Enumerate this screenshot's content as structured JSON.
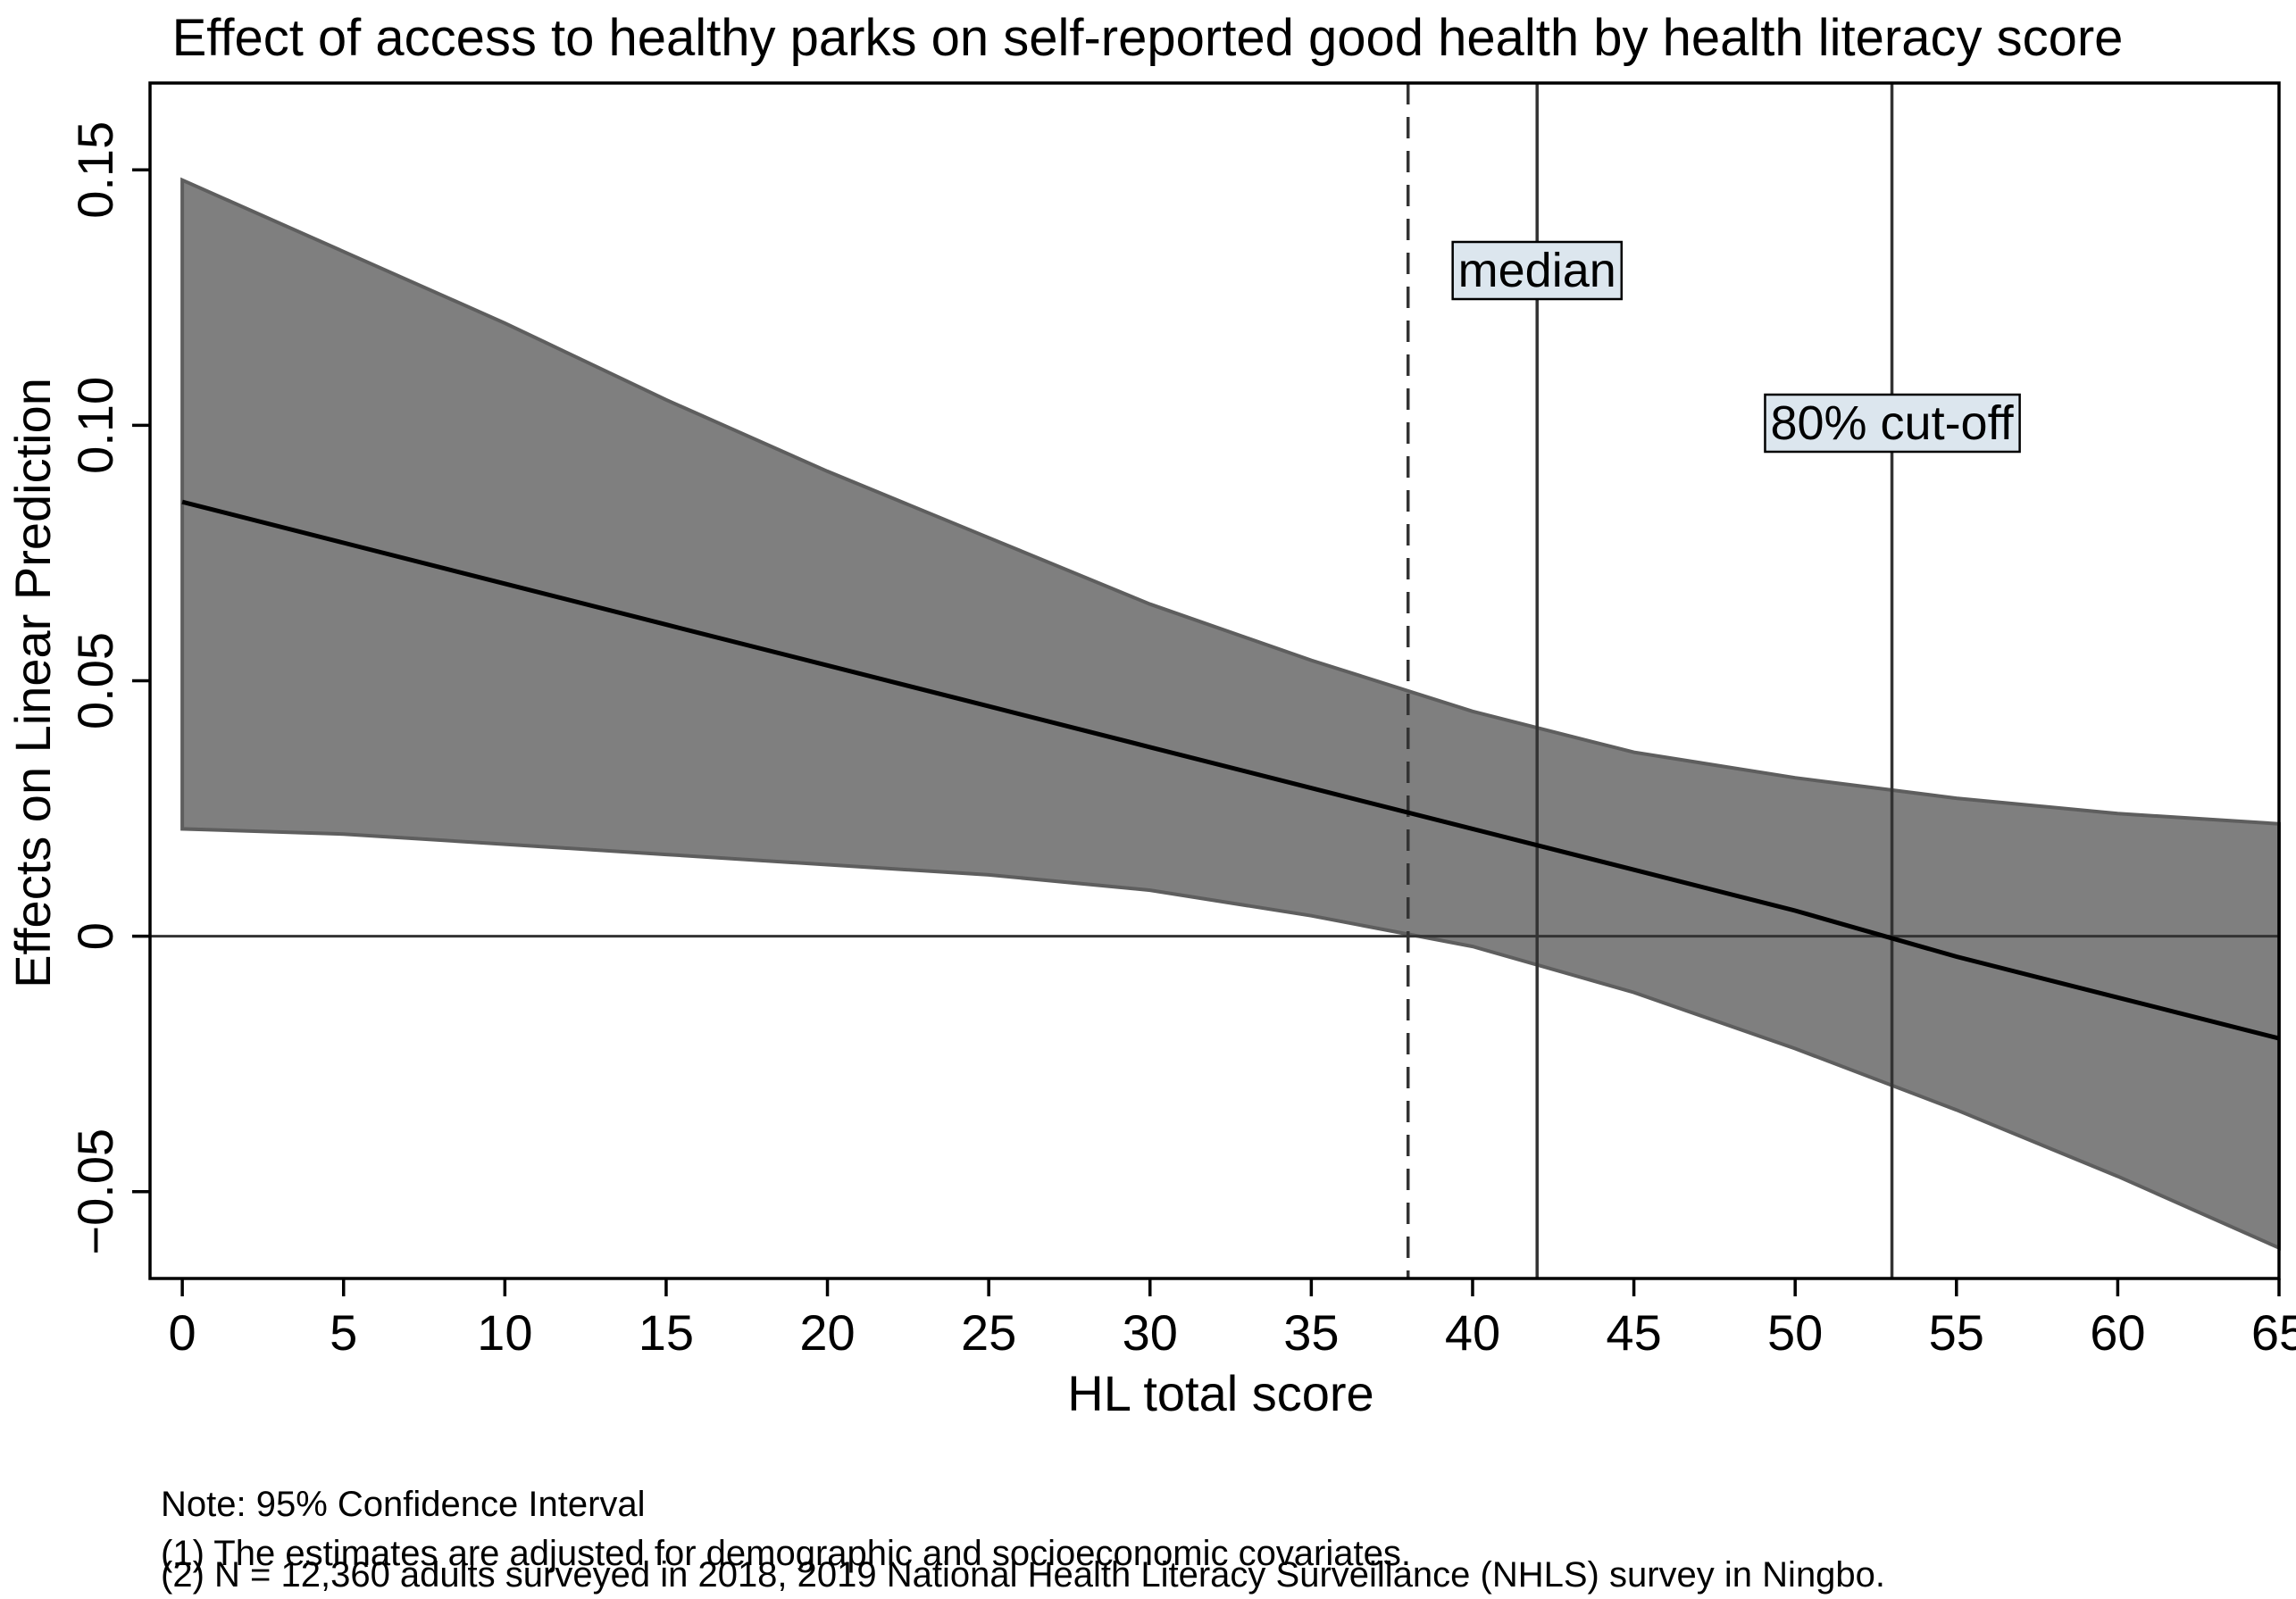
{
  "chart_data": {
    "type": "area",
    "title": "Effect of access to healthy parks on self-reported good health by health literacy score",
    "xlabel": "HL total score",
    "ylabel": "Effects on Linear Prediction",
    "xlim": [
      -1,
      65
    ],
    "ylim": [
      -0.067,
      0.167
    ],
    "xticks": [
      0,
      5,
      10,
      15,
      20,
      25,
      30,
      35,
      40,
      45,
      50,
      55,
      60,
      65
    ],
    "xtick_labels": [
      "0",
      "5",
      "10",
      "15",
      "20",
      "25",
      "30",
      "35",
      "40",
      "45",
      "50",
      "55",
      "60",
      "65"
    ],
    "yticks": [
      -0.05,
      0,
      0.05,
      0.1,
      0.15
    ],
    "ytick_labels": [
      "−0.05",
      "0",
      "0.05",
      "0.10",
      "0.15"
    ],
    "x": [
      0,
      5,
      10,
      15,
      20,
      25,
      30,
      35,
      40,
      45,
      50,
      55,
      60,
      65
    ],
    "series": [
      {
        "name": "Effect estimate",
        "values": [
          0.085,
          0.077,
          0.069,
          0.061,
          0.053,
          0.045,
          0.037,
          0.029,
          0.021,
          0.013,
          0.005,
          -0.004,
          -0.012,
          -0.02
        ],
        "color": "#000000"
      },
      {
        "name": "95% CI upper",
        "values": [
          0.148,
          0.134,
          0.12,
          0.105,
          0.091,
          0.078,
          0.065,
          0.054,
          0.044,
          0.036,
          0.031,
          0.027,
          0.024,
          0.022
        ]
      },
      {
        "name": "95% CI lower",
        "values": [
          0.021,
          0.02,
          0.018,
          0.016,
          0.014,
          0.012,
          0.009,
          0.004,
          -0.002,
          -0.011,
          -0.022,
          -0.034,
          -0.047,
          -0.061
        ]
      }
    ],
    "band_color": "#7f7f7f",
    "band_edge_color": "#5e5e5e",
    "reference_lines": [
      {
        "x": 38,
        "style": "dashed"
      },
      {
        "x": 42,
        "style": "solid",
        "label": "median"
      },
      {
        "x": 53,
        "style": "solid",
        "label": "80% cut-off"
      }
    ],
    "hline": 0,
    "annotation_fill": "#dce6ee",
    "notes": [
      "Note: 95% Confidence Interval",
      "(1) The estimates are adjusted for demographic and socioeconomic covariates.",
      "(2) N = 12,360 adults surveyed in 2018, 2019 National Health Literacy Surveillance (NHLS) survey in Ningbo."
    ]
  }
}
